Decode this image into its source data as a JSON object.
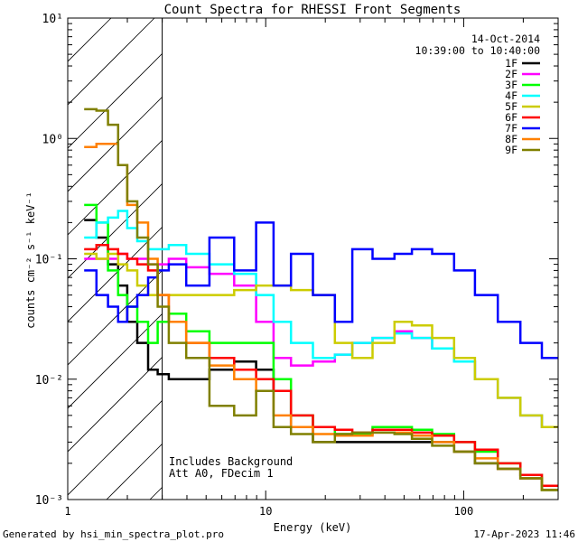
{
  "chart_data": {
    "type": "line",
    "title": "Count Spectra for RHESSI Front Segments",
    "xlabel": "Energy (keV)",
    "ylabel": "counts cm⁻² s⁻¹ keV⁻¹",
    "xscale": "log",
    "yscale": "log",
    "xlim": [
      1,
      300
    ],
    "ylim": [
      0.001,
      10
    ],
    "xticks": [
      {
        "value": 1,
        "label": "1"
      },
      {
        "value": 10,
        "label": "10"
      },
      {
        "value": 100,
        "label": "100"
      }
    ],
    "yticks": [
      {
        "value": 10,
        "label": "10¹"
      },
      {
        "value": 1,
        "label": "10⁰"
      },
      {
        "value": 0.1,
        "label": "10⁻¹"
      },
      {
        "value": 0.01,
        "label": "10⁻²"
      },
      {
        "value": 0.001,
        "label": "10⁻³"
      }
    ],
    "hatched_region_max_energy": 3,
    "date_label": "14-Oct-2014",
    "time_label": "10:39:00 to 10:40:00",
    "annotations": [
      "Includes Background",
      "Att A0, FDecim 1"
    ],
    "legend_position": "top-right",
    "series": [
      {
        "name": "1F",
        "color": "#000000",
        "x": [
          1.3,
          1.5,
          1.7,
          1.9,
          2.1,
          2.4,
          2.7,
          3.0,
          3.5,
          4.5,
          6,
          8,
          10,
          12,
          15,
          20,
          25,
          30,
          40,
          50,
          60,
          80,
          100,
          130,
          170,
          220,
          280
        ],
        "y": [
          0.21,
          0.15,
          0.09,
          0.06,
          0.03,
          0.02,
          0.012,
          0.011,
          0.01,
          0.01,
          0.012,
          0.014,
          0.012,
          0.008,
          0.004,
          0.003,
          0.003,
          0.003,
          0.003,
          0.003,
          0.003,
          0.003,
          0.0025,
          0.002,
          0.0018,
          0.0015,
          0.0012
        ]
      },
      {
        "name": "2F",
        "color": "#ff00ff",
        "x": [
          1.3,
          1.5,
          1.7,
          1.9,
          2.1,
          2.4,
          2.7,
          3.0,
          3.5,
          4.5,
          6,
          8,
          10,
          12,
          15,
          20,
          25,
          30,
          40,
          50,
          60,
          80,
          100,
          130,
          170,
          220,
          280
        ],
        "y": [
          0.1,
          0.1,
          0.1,
          0.11,
          0.1,
          0.1,
          0.09,
          0.09,
          0.1,
          0.085,
          0.075,
          0.06,
          0.03,
          0.015,
          0.013,
          0.014,
          0.016,
          0.02,
          0.022,
          0.025,
          0.022,
          0.018,
          0.014,
          0.01,
          0.007,
          0.005,
          0.004
        ]
      },
      {
        "name": "3F",
        "color": "#00ff00",
        "x": [
          1.3,
          1.5,
          1.7,
          1.9,
          2.1,
          2.4,
          2.7,
          3.0,
          3.5,
          4.5,
          6,
          8,
          10,
          12,
          15,
          20,
          25,
          30,
          40,
          50,
          60,
          80,
          100,
          130,
          170,
          220,
          280
        ],
        "y": [
          0.28,
          0.2,
          0.08,
          0.05,
          0.04,
          0.03,
          0.02,
          0.03,
          0.035,
          0.025,
          0.02,
          0.02,
          0.02,
          0.01,
          0.005,
          0.004,
          0.0035,
          0.0035,
          0.004,
          0.004,
          0.0038,
          0.0035,
          0.003,
          0.0025,
          0.002,
          0.0016,
          0.0012
        ]
      },
      {
        "name": "4F",
        "color": "#00ffff",
        "x": [
          1.3,
          1.5,
          1.7,
          1.9,
          2.1,
          2.4,
          2.7,
          3.0,
          3.5,
          4.5,
          6,
          8,
          10,
          12,
          15,
          20,
          25,
          30,
          40,
          50,
          60,
          80,
          100,
          130,
          170,
          220,
          280
        ],
        "y": [
          0.15,
          0.2,
          0.22,
          0.25,
          0.18,
          0.14,
          0.12,
          0.12,
          0.13,
          0.11,
          0.09,
          0.075,
          0.05,
          0.03,
          0.02,
          0.015,
          0.016,
          0.02,
          0.022,
          0.024,
          0.022,
          0.018,
          0.014,
          0.01,
          0.007,
          0.005,
          0.004
        ]
      },
      {
        "name": "5F",
        "color": "#cccc00",
        "x": [
          1.3,
          1.5,
          1.7,
          1.9,
          2.1,
          2.4,
          2.7,
          3.0,
          3.5,
          4.5,
          6,
          8,
          10,
          12,
          15,
          20,
          25,
          30,
          40,
          50,
          60,
          80,
          100,
          130,
          170,
          220,
          280
        ],
        "y": [
          0.11,
          0.1,
          0.11,
          0.09,
          0.08,
          0.06,
          0.05,
          0.05,
          0.05,
          0.05,
          0.05,
          0.055,
          0.06,
          0.06,
          0.055,
          0.05,
          0.02,
          0.015,
          0.02,
          0.03,
          0.028,
          0.022,
          0.015,
          0.01,
          0.007,
          0.005,
          0.004
        ]
      },
      {
        "name": "6F",
        "color": "#ff0000",
        "x": [
          1.3,
          1.5,
          1.7,
          1.9,
          2.1,
          2.4,
          2.7,
          3.0,
          3.5,
          4.5,
          6,
          8,
          10,
          12,
          15,
          20,
          25,
          30,
          40,
          50,
          60,
          80,
          100,
          130,
          170,
          220,
          280
        ],
        "y": [
          0.12,
          0.13,
          0.12,
          0.11,
          0.1,
          0.09,
          0.08,
          0.05,
          0.03,
          0.02,
          0.015,
          0.012,
          0.01,
          0.008,
          0.005,
          0.004,
          0.0038,
          0.0036,
          0.0038,
          0.0038,
          0.0036,
          0.0034,
          0.003,
          0.0026,
          0.002,
          0.0016,
          0.0013
        ]
      },
      {
        "name": "7F",
        "color": "#0000ff",
        "x": [
          1.3,
          1.5,
          1.7,
          1.9,
          2.1,
          2.4,
          2.7,
          3.0,
          3.5,
          4.5,
          6,
          8,
          10,
          12,
          15,
          20,
          25,
          30,
          40,
          50,
          60,
          80,
          100,
          130,
          170,
          220,
          280
        ],
        "y": [
          0.08,
          0.05,
          0.04,
          0.03,
          0.04,
          0.05,
          0.07,
          0.08,
          0.09,
          0.06,
          0.15,
          0.08,
          0.2,
          0.06,
          0.11,
          0.05,
          0.03,
          0.12,
          0.1,
          0.11,
          0.12,
          0.11,
          0.08,
          0.05,
          0.03,
          0.02,
          0.015
        ]
      },
      {
        "name": "8F",
        "color": "#ff8000",
        "x": [
          1.3,
          1.5,
          1.7,
          1.9,
          2.1,
          2.4,
          2.7,
          3.0,
          3.5,
          4.5,
          6,
          8,
          10,
          12,
          15,
          20,
          25,
          30,
          40,
          50,
          60,
          80,
          100,
          130,
          170,
          220,
          280
        ],
        "y": [
          0.85,
          0.9,
          0.9,
          0.6,
          0.28,
          0.2,
          0.1,
          0.05,
          0.03,
          0.02,
          0.013,
          0.01,
          0.008,
          0.005,
          0.004,
          0.0035,
          0.0034,
          0.0034,
          0.0036,
          0.0036,
          0.0034,
          0.003,
          0.0025,
          0.0022,
          0.0018,
          0.0015,
          0.0012
        ]
      },
      {
        "name": "9F",
        "color": "#808000",
        "x": [
          1.3,
          1.5,
          1.7,
          1.9,
          2.1,
          2.4,
          2.7,
          3.0,
          3.5,
          4.5,
          6,
          8,
          10,
          12,
          15,
          20,
          25,
          30,
          40,
          50,
          60,
          80,
          100,
          130,
          170,
          220,
          280
        ],
        "y": [
          1.75,
          1.7,
          1.3,
          0.6,
          0.3,
          0.15,
          0.09,
          0.04,
          0.02,
          0.015,
          0.006,
          0.005,
          0.008,
          0.004,
          0.0035,
          0.003,
          0.0035,
          0.0036,
          0.0036,
          0.0035,
          0.0032,
          0.0028,
          0.0025,
          0.002,
          0.0018,
          0.0015,
          0.0012
        ]
      }
    ]
  },
  "footer": {
    "generator": "Generated by hsi_min_spectra_plot.pro",
    "timestamp": "17-Apr-2023 11:46"
  }
}
